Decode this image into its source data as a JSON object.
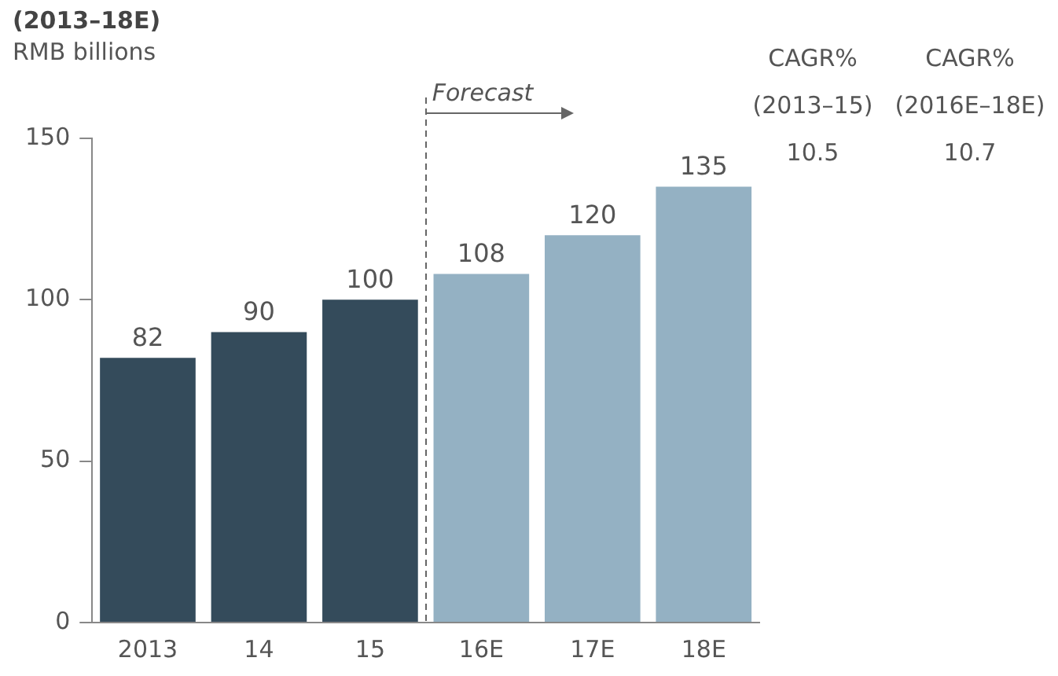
{
  "chart_data": {
    "type": "bar",
    "title": "(2013–18E)",
    "subtitle": "RMB billions",
    "categories": [
      "2013",
      "14",
      "15",
      "16E",
      "17E",
      "18E"
    ],
    "values": [
      82,
      90,
      100,
      108,
      120,
      135
    ],
    "colors": [
      "#344b5b",
      "#344b5b",
      "#344b5b",
      "#94b1c3",
      "#94b1c3",
      "#94b1c3"
    ],
    "ylim": [
      0,
      150
    ],
    "yticks": [
      0,
      50,
      100,
      150
    ],
    "grid": false,
    "legend": false,
    "data_labels": true,
    "annotations": [
      "Forecast",
      "CAGR%",
      "(2013–15)",
      "10.5",
      "CAGR%",
      "(2016E–18E)",
      "10.7"
    ]
  }
}
